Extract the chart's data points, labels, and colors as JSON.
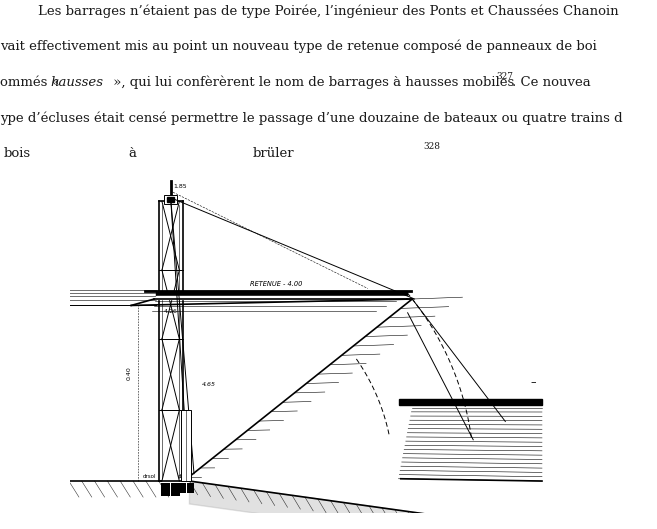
{
  "background_color": "#ffffff",
  "figsize": [
    6.57,
    5.29
  ],
  "dpi": 100,
  "col": "#000000",
  "text_color": "#1a1a1a",
  "line1": "Les barrages n’étaient pas de type Poirée, l’ingénieur des Ponts et Chaussées Chanoin",
  "line2": "vait effectivement mis au point un nouveau type de retenue composé de panneaux de boi",
  "line3a": "ommés « ",
  "line3b": "hausses",
  "line3c": " », qui lui confèrèrent le nom de barrages à hausses mobiles",
  "line3d": "327",
  "line3e": ". Ce nouvea",
  "line4": "ype d’écluses était censé permettre le passage d’une douzaine de bateaux ou quatre trains d",
  "line5a": "bois",
  "line5b": "à",
  "line5c": "brüler",
  "line5d": "328",
  "fontsize": 9.5,
  "fontsize_super": 6.5
}
